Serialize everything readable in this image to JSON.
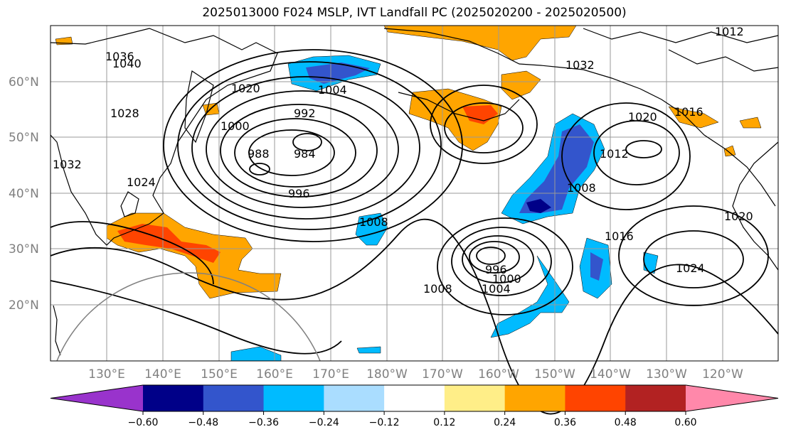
{
  "title": "2025013000 F024 MSLP, IVT Landfall PC (2025020200 - 2025020500)",
  "lat_labels": [
    "60°N",
    "50°N",
    "40°N",
    "30°N",
    "20°N"
  ],
  "lon_labels": [
    "130°E",
    "140°E",
    "150°E",
    "160°E",
    "170°E",
    "180°W",
    "170°W",
    "160°W",
    "150°W",
    "140°W",
    "130°W",
    "120°W"
  ],
  "colorbar": {
    "colors": [
      "#9933cc",
      "#000088",
      "#3355cc",
      "#00bbff",
      "#aaddff",
      "#ffffff",
      "#ffee88",
      "#ffa500",
      "#ff4400",
      "#b22222",
      "#ff88aa"
    ],
    "tick_labels": [
      "−0.60",
      "−0.48",
      "−0.36",
      "−0.24",
      "−0.12",
      "0.12",
      "0.24",
      "0.36",
      "0.48",
      "0.60"
    ]
  },
  "contour_labels": [
    "1036",
    "1040",
    "1020",
    "1028",
    "1032",
    "1024",
    "1000",
    "992",
    "988",
    "984",
    "996",
    "1004",
    "1008",
    "1008",
    "996",
    "1000",
    "1004",
    "1032",
    "1016",
    "1012",
    "1020",
    "1016",
    "1024",
    "1020",
    "1008",
    "1012"
  ],
  "colors": {
    "land": "#000000",
    "grid": "#999999",
    "text": "#808080"
  }
}
